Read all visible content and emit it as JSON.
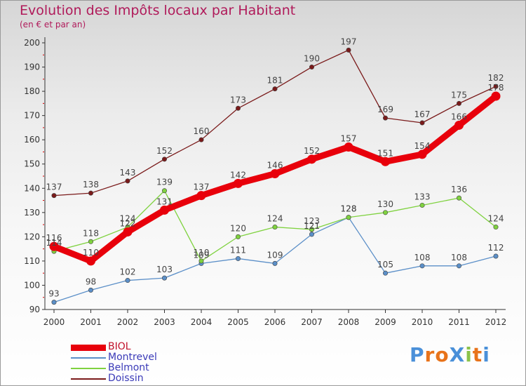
{
  "title": "Evolution des Impôts locaux par Habitant",
  "subtitle": "(en € et par an)",
  "logo": {
    "text": "ProXiti",
    "colors": [
      "#4a90d9",
      "#e8731a",
      "#e8731a",
      "#4a90d9",
      "#8bc34a",
      "#e8731a",
      "#4a90d9"
    ]
  },
  "chart_data": {
    "type": "line",
    "title": "Evolution des Impôts locaux par Habitant",
    "subtitle": "(en € et par an)",
    "xlabel": "",
    "ylabel": "",
    "x": [
      2000,
      2001,
      2002,
      2003,
      2004,
      2005,
      2006,
      2007,
      2008,
      2009,
      2010,
      2011,
      2012
    ],
    "ylim": [
      90,
      200
    ],
    "yticks": [
      90,
      100,
      110,
      120,
      130,
      140,
      150,
      160,
      170,
      180,
      190,
      200
    ],
    "grid": false,
    "legend_position": "bottom-left",
    "series": [
      {
        "name": "BIOL",
        "color": "#e8000b",
        "emphasis": true,
        "values": [
          116,
          110,
          122,
          131,
          137,
          142,
          146,
          152,
          157,
          151,
          154,
          166,
          178
        ]
      },
      {
        "name": "Montrevel",
        "color": "#5b8fc8",
        "emphasis": false,
        "values": [
          93,
          98,
          102,
          103,
          109,
          111,
          109,
          121,
          128,
          105,
          108,
          108,
          112
        ]
      },
      {
        "name": "Belmont",
        "color": "#7fd23f",
        "emphasis": false,
        "values": [
          114,
          118,
          124,
          139,
          110,
          120,
          124,
          123,
          128,
          130,
          133,
          136,
          124
        ]
      },
      {
        "name": "Doissin",
        "color": "#7a1a1a",
        "emphasis": false,
        "values": [
          137,
          138,
          143,
          152,
          160,
          173,
          181,
          190,
          197,
          169,
          167,
          175,
          182
        ]
      }
    ]
  }
}
